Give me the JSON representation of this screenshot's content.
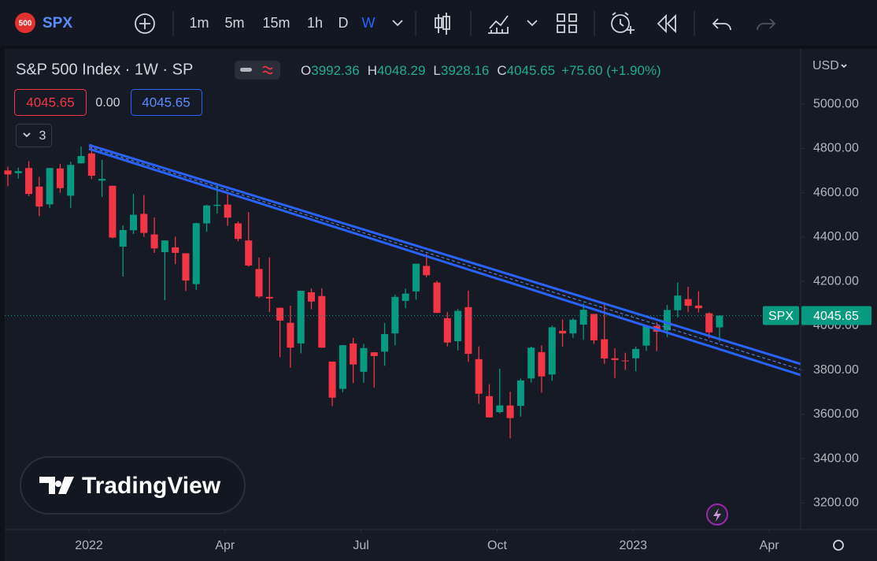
{
  "toolbar": {
    "badge": "500",
    "symbol": "SPX",
    "intervals": [
      "1m",
      "5m",
      "15m",
      "1h",
      "D",
      "W"
    ]
  },
  "legend": {
    "title": "S&P 500 Index · 1W · SP",
    "ohlc_labels": [
      "O",
      "H",
      "L",
      "C"
    ],
    "change": "+75.60 (+1.90%)",
    "bid": "4045.65",
    "spread": "0.00",
    "ask": "4045.65",
    "indicators": "3"
  },
  "currency": "USD",
  "price_tag_symbol": "SPX",
  "watermark": "TradingView",
  "chart_data": {
    "type": "candlestick",
    "up_color": "#089981",
    "down_color": "#f23645",
    "open": [
      4701,
      4689,
      4712,
      4628,
      4548,
      4710,
      4587,
      4733,
      4778,
      4655,
      4632,
      4357,
      4431,
      4505,
      4412,
      4332,
      4354,
      4327,
      4188,
      4462,
      4541,
      4547,
      4462,
      4385,
      4256,
      4130,
      4081,
      4013,
      3920,
      4151,
      4134,
      3838,
      3715,
      3920,
      3792,
      3880,
      3883,
      3965,
      4112,
      4155,
      4270,
      4195,
      4034,
      3930,
      4084,
      3849,
      3682,
      3610,
      3640,
      3638,
      3762,
      3881,
      3780,
      3977,
      3965,
      4005,
      4053,
      3939,
      3853,
      3843,
      3853,
      3910,
      3999,
      3979,
      4070,
      4120,
      4091,
      4056,
      3992.36
    ],
    "high": [
      4718,
      4714,
      4743,
      4672,
      4713,
      4731,
      4741,
      4809,
      4819,
      4749,
      4632,
      4453,
      4595,
      4590,
      4489,
      4385,
      4402,
      4327,
      4465,
      4546,
      4637,
      4593,
      4471,
      4513,
      4308,
      4308,
      4082,
      4090,
      4158,
      4168,
      4169,
      3838,
      3913,
      3945,
      3918,
      3880,
      4013,
      4140,
      4167,
      4280,
      4325,
      4203,
      4062,
      4076,
      4159,
      3907,
      3736,
      3806,
      3702,
      3762,
      3906,
      3911,
      4000,
      4028,
      4034,
      4100,
      4053,
      4101,
      3898,
      3878,
      3906,
      4003,
      4015,
      4094,
      4195,
      4176,
      4156,
      4060,
      4048.29
    ],
    "low": [
      4630,
      4664,
      4585,
      4495,
      4532,
      4600,
      4532,
      4733,
      4662,
      4582,
      4395,
      4222,
      4414,
      4401,
      4329,
      4115,
      4278,
      4157,
      4161,
      4424,
      4506,
      4451,
      4381,
      4267,
      4124,
      4062,
      3858,
      3810,
      3875,
      4074,
      3900,
      3637,
      3700,
      3741,
      3742,
      3721,
      3819,
      3911,
      4079,
      4117,
      4218,
      4057,
      3907,
      3888,
      3837,
      3647,
      3585,
      3604,
      3491,
      3590,
      3743,
      3698,
      3751,
      3906,
      3945,
      3936,
      3918,
      3828,
      3764,
      3800,
      3794,
      3887,
      3885,
      3949,
      4037,
      4061,
      4060,
      3943,
      3928.16
    ],
    "close": [
      4683,
      4698,
      4595,
      4538,
      4712,
      4621,
      4726,
      4766,
      4677,
      4663,
      4398,
      4432,
      4501,
      4419,
      4349,
      4385,
      4329,
      4204,
      4463,
      4543,
      4546,
      4488,
      4392,
      4272,
      4132,
      4123,
      4023,
      3901,
      4158,
      4109,
      3901,
      3675,
      3912,
      3825,
      3899,
      3863,
      3962,
      4130,
      4145,
      4280,
      4228,
      4058,
      3924,
      4067,
      3873,
      3693,
      3586,
      3640,
      3583,
      3753,
      3901,
      3771,
      3993,
      3965,
      4027,
      4072,
      3934,
      3852,
      3845,
      3840,
      3895,
      3999,
      3973,
      4071,
      4136,
      4090,
      4079,
      3970,
      4045.65
    ],
    "xlim": [
      -0.75,
      75.75
    ],
    "xticks": [
      {
        "value": 7.75,
        "label": "2022"
      },
      {
        "value": 20.75,
        "label": "Apr"
      },
      {
        "value": 33.75,
        "label": "Jul"
      },
      {
        "value": 46.75,
        "label": "Oct"
      },
      {
        "value": 59.75,
        "label": "2023"
      },
      {
        "value": 72.75,
        "label": "Apr"
      }
    ],
    "ylim": [
      3080,
      5250
    ],
    "yticks": [
      {
        "value": 3200,
        "label": "3200.00"
      },
      {
        "value": 3400,
        "label": "3400.00"
      },
      {
        "value": 3600,
        "label": "3600.00"
      },
      {
        "value": 3800,
        "label": "3800.00"
      },
      {
        "value": 4000,
        "label": "4000.00"
      },
      {
        "value": 4200,
        "label": "4200.00"
      },
      {
        "value": 4400,
        "label": "4400.00"
      },
      {
        "value": 4600,
        "label": "4600.00"
      },
      {
        "value": 4800,
        "label": "4800.00"
      },
      {
        "value": 5000,
        "label": "5000.00"
      }
    ]
  }
}
